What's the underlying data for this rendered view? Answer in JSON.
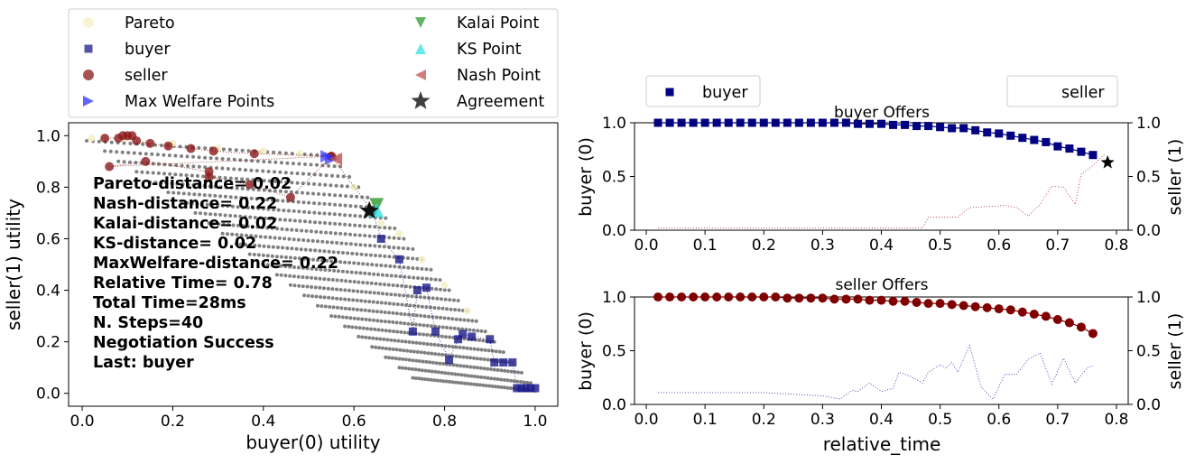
{
  "chart_data": [
    {
      "type": "scatter",
      "id": "utility-plot",
      "xlabel": "buyer(0) utility",
      "ylabel": "seller(1) utility",
      "xlim": [
        -0.03,
        1.05
      ],
      "ylim": [
        -0.05,
        1.05
      ],
      "xticks": [
        "0.0",
        "0.2",
        "0.4",
        "0.6",
        "0.8",
        "1.0"
      ],
      "yticks": [
        "0.0",
        "0.2",
        "0.4",
        "0.6",
        "0.8",
        "1.0"
      ],
      "grid": false,
      "legend": {
        "placement": "above",
        "entries": [
          {
            "label": "Pareto",
            "marker": "circle",
            "color": "#f5f0c8"
          },
          {
            "label": "buyer",
            "marker": "square",
            "color": "#1a1a8c"
          },
          {
            "label": "seller",
            "marker": "circle",
            "color": "#8b1a1a"
          },
          {
            "label": "Max Welfare Points",
            "marker": "triangle-right",
            "color": "#3333ff"
          },
          {
            "label": "Kalai Point",
            "marker": "triangle-down",
            "color": "#2e9a2e"
          },
          {
            "label": "KS Point",
            "marker": "triangle-up",
            "color": "#33e0e0"
          },
          {
            "label": "Nash Point",
            "marker": "triangle-left",
            "color": "#c05050"
          },
          {
            "label": "Agreement",
            "marker": "star",
            "color": "#000000"
          }
        ]
      },
      "annotations": [
        "Pareto-distance= 0.02",
        "Nash-distance= 0.22",
        "Kalai-distance= 0.02",
        "KS-distance= 0.02",
        "MaxWelfare-distance= 0.22",
        "Relative Time= 0.78",
        "Total Time=28ms",
        "N. Steps=40",
        "Negotiation Success",
        "Last: buyer"
      ],
      "outcome_rows": [
        {
          "x0": 0.01,
          "x1": 0.56,
          "y0": 0.98,
          "y1": 0.92
        },
        {
          "x0": 0.05,
          "x1": 0.57,
          "y0": 0.94,
          "y1": 0.88
        },
        {
          "x0": 0.08,
          "x1": 0.59,
          "y0": 0.9,
          "y1": 0.84
        },
        {
          "x0": 0.12,
          "x1": 0.61,
          "y0": 0.86,
          "y1": 0.8
        },
        {
          "x0": 0.15,
          "x1": 0.63,
          "y0": 0.82,
          "y1": 0.76
        },
        {
          "x0": 0.19,
          "x1": 0.65,
          "y0": 0.78,
          "y1": 0.72
        },
        {
          "x0": 0.22,
          "x1": 0.67,
          "y0": 0.74,
          "y1": 0.68
        },
        {
          "x0": 0.25,
          "x1": 0.69,
          "y0": 0.7,
          "y1": 0.64
        },
        {
          "x0": 0.28,
          "x1": 0.71,
          "y0": 0.66,
          "y1": 0.6
        },
        {
          "x0": 0.31,
          "x1": 0.73,
          "y0": 0.62,
          "y1": 0.56
        },
        {
          "x0": 0.34,
          "x1": 0.75,
          "y0": 0.58,
          "y1": 0.52
        },
        {
          "x0": 0.37,
          "x1": 0.77,
          "y0": 0.54,
          "y1": 0.48
        },
        {
          "x0": 0.4,
          "x1": 0.79,
          "y0": 0.5,
          "y1": 0.44
        },
        {
          "x0": 0.43,
          "x1": 0.81,
          "y0": 0.46,
          "y1": 0.4
        },
        {
          "x0": 0.46,
          "x1": 0.83,
          "y0": 0.42,
          "y1": 0.36
        },
        {
          "x0": 0.49,
          "x1": 0.85,
          "y0": 0.38,
          "y1": 0.32
        },
        {
          "x0": 0.52,
          "x1": 0.87,
          "y0": 0.34,
          "y1": 0.28
        },
        {
          "x0": 0.55,
          "x1": 0.89,
          "y0": 0.3,
          "y1": 0.24
        },
        {
          "x0": 0.58,
          "x1": 0.91,
          "y0": 0.26,
          "y1": 0.2
        },
        {
          "x0": 0.61,
          "x1": 0.93,
          "y0": 0.22,
          "y1": 0.16
        },
        {
          "x0": 0.64,
          "x1": 0.95,
          "y0": 0.18,
          "y1": 0.12
        },
        {
          "x0": 0.67,
          "x1": 0.97,
          "y0": 0.14,
          "y1": 0.08
        },
        {
          "x0": 0.7,
          "x1": 0.99,
          "y0": 0.1,
          "y1": 0.04
        },
        {
          "x0": 0.73,
          "x1": 1.0,
          "y0": 0.06,
          "y1": 0.01
        }
      ],
      "pareto": [
        [
          0.02,
          0.99
        ],
        [
          0.1,
          0.99
        ],
        [
          0.2,
          0.97
        ],
        [
          0.3,
          0.95
        ],
        [
          0.4,
          0.94
        ],
        [
          0.48,
          0.93
        ],
        [
          0.56,
          0.92
        ],
        [
          0.6,
          0.8
        ],
        [
          0.64,
          0.73
        ],
        [
          0.66,
          0.66
        ],
        [
          0.7,
          0.62
        ],
        [
          0.75,
          0.52
        ],
        [
          0.8,
          0.42
        ],
        [
          0.85,
          0.32
        ],
        [
          0.9,
          0.22
        ],
        [
          0.95,
          0.12
        ],
        [
          1.0,
          0.02
        ]
      ],
      "buyer_offers": [
        [
          1.0,
          0.02
        ],
        [
          0.99,
          0.02
        ],
        [
          0.98,
          0.02
        ],
        [
          0.97,
          0.02
        ],
        [
          0.96,
          0.02
        ],
        [
          0.95,
          0.12
        ],
        [
          0.93,
          0.12
        ],
        [
          0.91,
          0.12
        ],
        [
          0.9,
          0.21
        ],
        [
          0.86,
          0.22
        ],
        [
          0.84,
          0.23
        ],
        [
          0.83,
          0.21
        ],
        [
          0.81,
          0.13
        ],
        [
          0.78,
          0.24
        ],
        [
          0.76,
          0.41
        ],
        [
          0.74,
          0.4
        ],
        [
          0.73,
          0.24
        ],
        [
          0.7,
          0.52
        ],
        [
          0.66,
          0.6
        ],
        [
          0.64,
          0.71
        ]
      ],
      "seller_offers": [
        [
          0.05,
          0.99
        ],
        [
          0.08,
          0.99
        ],
        [
          0.09,
          1.0
        ],
        [
          0.1,
          1.0
        ],
        [
          0.11,
          1.0
        ],
        [
          0.12,
          0.98
        ],
        [
          0.15,
          0.97
        ],
        [
          0.19,
          0.96
        ],
        [
          0.24,
          0.95
        ],
        [
          0.29,
          0.94
        ],
        [
          0.38,
          0.93
        ],
        [
          0.55,
          0.92
        ],
        [
          0.06,
          0.88
        ],
        [
          0.14,
          0.9
        ],
        [
          0.28,
          0.86
        ],
        [
          0.28,
          0.84
        ],
        [
          0.37,
          0.81
        ],
        [
          0.46,
          0.76
        ],
        [
          0.55,
          0.92
        ],
        [
          0.64,
          0.71
        ]
      ],
      "max_welfare_points": [
        [
          0.54,
          0.92
        ],
        [
          0.55,
          0.91
        ]
      ],
      "kalai_point": [
        0.65,
        0.73
      ],
      "ks_point": [
        0.65,
        0.71
      ],
      "nash_point": [
        0.56,
        0.91
      ],
      "agreement": [
        0.634,
        0.708
      ]
    },
    {
      "type": "line",
      "id": "buyer-offers",
      "title": "buyer Offers",
      "ylabel_left": "buyer (0)",
      "ylabel_right": "seller (1)",
      "xlim": [
        -0.02,
        0.82
      ],
      "ylim": [
        0,
        1
      ],
      "xticks": [
        "0.0",
        "0.1",
        "0.2",
        "0.3",
        "0.4",
        "0.5",
        "0.6",
        "0.7",
        "0.8"
      ],
      "yticks": [
        "0.0",
        "0.5",
        "1.0"
      ],
      "legend": {
        "placement": "top",
        "entries": [
          "buyer",
          "seller"
        ]
      },
      "series": [
        {
          "name": "buyer",
          "x": [
            0.02,
            0.04,
            0.06,
            0.08,
            0.1,
            0.12,
            0.14,
            0.16,
            0.18,
            0.2,
            0.22,
            0.24,
            0.26,
            0.28,
            0.3,
            0.32,
            0.34,
            0.36,
            0.38,
            0.4,
            0.42,
            0.44,
            0.46,
            0.48,
            0.5,
            0.52,
            0.54,
            0.56,
            0.58,
            0.6,
            0.62,
            0.64,
            0.66,
            0.68,
            0.7,
            0.72,
            0.74,
            0.76
          ],
          "values": [
            1.0,
            1.0,
            1.0,
            1.0,
            1.0,
            1.0,
            1.0,
            1.0,
            1.0,
            1.0,
            1.0,
            1.0,
            1.0,
            1.0,
            1.0,
            1.0,
            1.0,
            0.99,
            0.99,
            0.99,
            0.98,
            0.98,
            0.97,
            0.97,
            0.96,
            0.95,
            0.95,
            0.93,
            0.91,
            0.9,
            0.88,
            0.86,
            0.84,
            0.82,
            0.78,
            0.76,
            0.73,
            0.7
          ]
        },
        {
          "name": "seller",
          "x": [
            0.02,
            0.1,
            0.2,
            0.3,
            0.4,
            0.47,
            0.48,
            0.5,
            0.53,
            0.55,
            0.58,
            0.61,
            0.63,
            0.65,
            0.67,
            0.69,
            0.71,
            0.73,
            0.74,
            0.76,
            0.78
          ],
          "values": [
            0.02,
            0.02,
            0.02,
            0.02,
            0.02,
            0.02,
            0.12,
            0.12,
            0.12,
            0.21,
            0.22,
            0.23,
            0.21,
            0.13,
            0.24,
            0.41,
            0.4,
            0.24,
            0.52,
            0.6,
            0.71
          ]
        }
      ],
      "agreement": {
        "x": 0.785,
        "y": 0.63
      }
    },
    {
      "type": "line",
      "id": "seller-offers",
      "title": "seller Offers",
      "xlabel": "relative_time",
      "ylabel_left": "buyer (0)",
      "ylabel_right": "seller (1)",
      "xlim": [
        -0.02,
        0.82
      ],
      "ylim": [
        0,
        1
      ],
      "xticks": [
        "0.0",
        "0.1",
        "0.2",
        "0.3",
        "0.4",
        "0.5",
        "0.6",
        "0.7",
        "0.8"
      ],
      "yticks": [
        "0.0",
        "0.5",
        "1.0"
      ],
      "series": [
        {
          "name": "seller",
          "x": [
            0.02,
            0.04,
            0.06,
            0.08,
            0.1,
            0.12,
            0.14,
            0.16,
            0.18,
            0.2,
            0.22,
            0.24,
            0.26,
            0.28,
            0.3,
            0.32,
            0.34,
            0.36,
            0.38,
            0.4,
            0.42,
            0.44,
            0.46,
            0.48,
            0.5,
            0.52,
            0.54,
            0.56,
            0.58,
            0.6,
            0.62,
            0.64,
            0.66,
            0.68,
            0.7,
            0.72,
            0.74,
            0.76
          ],
          "values": [
            1.0,
            1.0,
            1.0,
            1.0,
            1.0,
            1.0,
            1.0,
            1.0,
            1.0,
            1.0,
            1.0,
            0.99,
            0.99,
            0.99,
            0.99,
            0.98,
            0.98,
            0.98,
            0.97,
            0.97,
            0.96,
            0.96,
            0.95,
            0.94,
            0.94,
            0.93,
            0.92,
            0.91,
            0.9,
            0.89,
            0.88,
            0.86,
            0.84,
            0.82,
            0.79,
            0.76,
            0.72,
            0.66
          ]
        },
        {
          "name": "buyer",
          "x": [
            0.02,
            0.2,
            0.3,
            0.33,
            0.35,
            0.36,
            0.38,
            0.4,
            0.42,
            0.43,
            0.45,
            0.47,
            0.48,
            0.5,
            0.51,
            0.52,
            0.53,
            0.55,
            0.57,
            0.59,
            0.61,
            0.63,
            0.65,
            0.67,
            0.69,
            0.71,
            0.73,
            0.75,
            0.76
          ],
          "values": [
            0.11,
            0.11,
            0.08,
            0.05,
            0.13,
            0.12,
            0.2,
            0.12,
            0.15,
            0.3,
            0.26,
            0.2,
            0.3,
            0.37,
            0.34,
            0.39,
            0.3,
            0.55,
            0.16,
            0.05,
            0.28,
            0.28,
            0.42,
            0.48,
            0.19,
            0.43,
            0.2,
            0.34,
            0.36
          ]
        }
      ]
    }
  ]
}
